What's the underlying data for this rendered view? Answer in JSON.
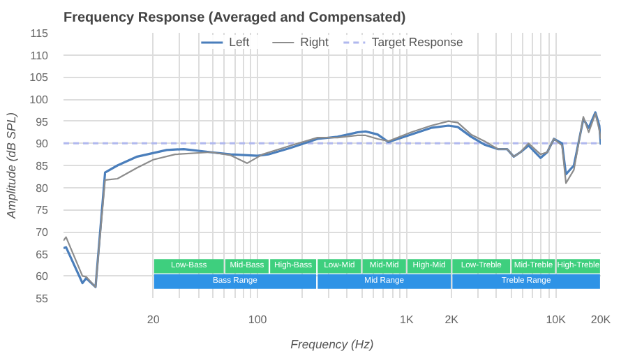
{
  "chart_data": {
    "type": "line",
    "title": "Frequency Response (Averaged and Compensated)",
    "xlabel": "Frequency (Hz)",
    "ylabel": "Amplitude (dB SPL)",
    "log": "x",
    "grid": true,
    "legend": "top",
    "marker": "none",
    "line_style": "solid",
    "xlim": [
      5,
      20000
    ],
    "ylim": [
      55,
      115
    ],
    "xticks": [
      {
        "value": 20,
        "label": "20"
      },
      {
        "value": 30,
        "label": null
      },
      {
        "value": 40,
        "label": null
      },
      {
        "value": 50,
        "label": null
      },
      {
        "value": 60,
        "label": null
      },
      {
        "value": 70,
        "label": null
      },
      {
        "value": 80,
        "label": null
      },
      {
        "value": 90,
        "label": null
      },
      {
        "value": 100,
        "label": "100"
      },
      {
        "value": 200,
        "label": null
      },
      {
        "value": 300,
        "label": null
      },
      {
        "value": 400,
        "label": null
      },
      {
        "value": 500,
        "label": null
      },
      {
        "value": 600,
        "label": null
      },
      {
        "value": 700,
        "label": null
      },
      {
        "value": 800,
        "label": null
      },
      {
        "value": 900,
        "label": null
      },
      {
        "value": 1000,
        "label": "1K"
      },
      {
        "value": 2000,
        "label": "2K"
      },
      {
        "value": 3000,
        "label": null
      },
      {
        "value": 4000,
        "label": null
      },
      {
        "value": 5000,
        "label": null
      },
      {
        "value": 6000,
        "label": null
      },
      {
        "value": 7000,
        "label": null
      },
      {
        "value": 8000,
        "label": null
      },
      {
        "value": 9000,
        "label": null
      },
      {
        "value": 10000,
        "label": "10K"
      },
      {
        "value": 20000,
        "label": "20K"
      }
    ],
    "yticks": [
      55,
      60,
      65,
      70,
      75,
      80,
      85,
      90,
      95,
      100,
      105,
      110,
      115
    ],
    "series": [
      {
        "name": "Left",
        "color": "#4a7ebb",
        "x": [
          5,
          5.2,
          6.7,
          7.1,
          8.2,
          9.5,
          11.5,
          15.6,
          24.6,
          32,
          48.5,
          66,
          100,
          118,
          167,
          252,
          344,
          469,
          530,
          638,
          753,
          1069,
          1456,
          1904,
          2198,
          2700,
          3320,
          4080,
          4710,
          5220,
          5790,
          6560,
          7890,
          8750,
          9700,
          11000,
          11680,
          13200,
          15280,
          16600,
          18400,
          19560,
          20000
        ],
        "values": [
          66.3,
          66.5,
          58.4,
          59.5,
          57.5,
          83.4,
          85,
          87,
          88.5,
          88.7,
          88,
          87.5,
          87.2,
          87.5,
          89,
          91,
          91.5,
          92.5,
          92.7,
          92,
          90.3,
          92,
          93.5,
          94,
          93.7,
          91.5,
          89.7,
          88.7,
          88.7,
          87,
          88,
          89.5,
          86.7,
          88,
          91,
          90,
          83,
          85,
          95.5,
          93.5,
          97,
          94,
          89.7
        ]
      },
      {
        "name": "Right",
        "color": "#8c8c8c",
        "x": [
          5,
          5.2,
          6.7,
          7.1,
          8.2,
          9.5,
          11.5,
          15.6,
          20,
          28,
          48.5,
          66,
          85,
          108,
          167,
          252,
          344,
          469,
          530,
          638,
          753,
          1069,
          1456,
          1904,
          2198,
          2700,
          3320,
          4080,
          4710,
          5220,
          5790,
          6560,
          7890,
          8750,
          9700,
          11000,
          11680,
          13200,
          15280,
          16600,
          18400,
          19560,
          20000
        ],
        "values": [
          68,
          68.8,
          60,
          59.8,
          57.5,
          81.7,
          82,
          84.5,
          86.3,
          87.5,
          88,
          87.3,
          85.5,
          87.5,
          89.5,
          91.3,
          91.3,
          91.8,
          91.8,
          91,
          90.5,
          92.5,
          94,
          95,
          94.7,
          92,
          90.5,
          88.7,
          88.7,
          87,
          88,
          90,
          87.5,
          88,
          91,
          89.5,
          81,
          84,
          96,
          92.5,
          96.7,
          93,
          91
        ]
      }
    ],
    "ref_lines": [
      {
        "axis": "y",
        "value": 90,
        "label": "Target Response",
        "color": "#b0b8ee",
        "line_style": "dashed"
      }
    ],
    "bands": [
      {
        "axis": "x",
        "from": 20,
        "to": 60,
        "label": "Low-Bass",
        "color": "#3ecf7e"
      },
      {
        "axis": "x",
        "from": 60,
        "to": 120,
        "label": "Mid-Bass",
        "color": "#3ecf7e"
      },
      {
        "axis": "x",
        "from": 120,
        "to": 250,
        "label": "High-Bass",
        "color": "#3ecf7e"
      },
      {
        "axis": "x",
        "from": 250,
        "to": 500,
        "label": "Low-Mid",
        "color": "#3ecf7e"
      },
      {
        "axis": "x",
        "from": 500,
        "to": 1000,
        "label": "Mid-Mid",
        "color": "#3ecf7e"
      },
      {
        "axis": "x",
        "from": 1000,
        "to": 2000,
        "label": "High-Mid",
        "color": "#3ecf7e"
      },
      {
        "axis": "x",
        "from": 2000,
        "to": 5000,
        "label": "Low-Treble",
        "color": "#3ecf7e"
      },
      {
        "axis": "x",
        "from": 5000,
        "to": 10000,
        "label": "Mid-Treble",
        "color": "#3ecf7e"
      },
      {
        "axis": "x",
        "from": 10000,
        "to": 20000,
        "label": "High-Treble",
        "color": "#3ecf7e"
      },
      {
        "axis": "x",
        "from": 20,
        "to": 250,
        "label": "Bass Range",
        "color": "#2e93e6"
      },
      {
        "axis": "x",
        "from": 250,
        "to": 2000,
        "label": "Mid Range",
        "color": "#2e93e6"
      },
      {
        "axis": "x",
        "from": 2000,
        "to": 20000,
        "label": "Treble Range",
        "color": "#2e93e6"
      }
    ]
  }
}
